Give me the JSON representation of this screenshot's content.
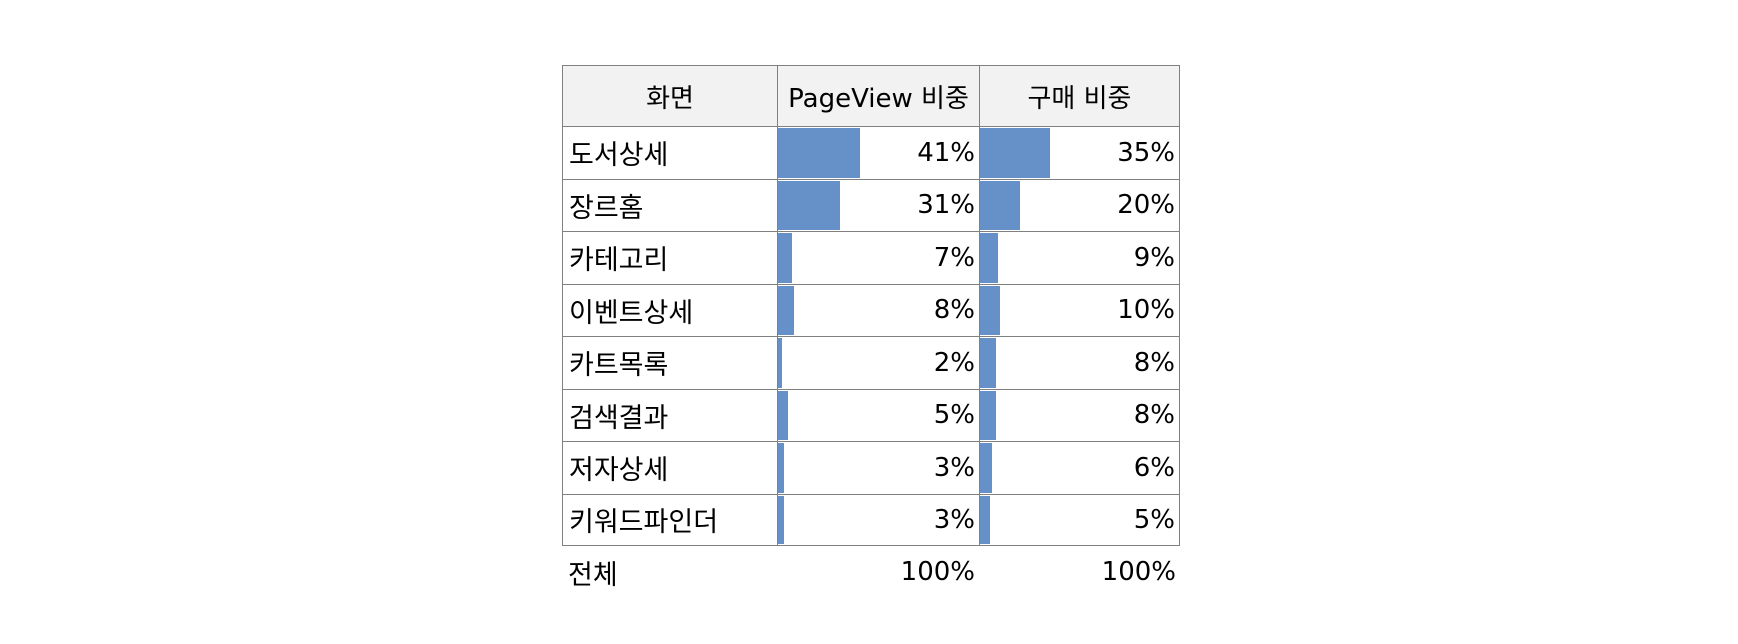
{
  "chart_data": {
    "type": "table",
    "columns": [
      "화면",
      "PageView 비중",
      "구매 비중"
    ],
    "rows": [
      {
        "name": "도서상세",
        "pageview": 41,
        "pageview_label": "41%",
        "purchase": 35,
        "purchase_label": "35%"
      },
      {
        "name": "장르홈",
        "pageview": 31,
        "pageview_label": "31%",
        "purchase": 20,
        "purchase_label": "20%"
      },
      {
        "name": "카테고리",
        "pageview": 7,
        "pageview_label": "7%",
        "purchase": 9,
        "purchase_label": "9%"
      },
      {
        "name": "이벤트상세",
        "pageview": 8,
        "pageview_label": "8%",
        "purchase": 10,
        "purchase_label": "10%"
      },
      {
        "name": "카트목록",
        "pageview": 2,
        "pageview_label": "2%",
        "purchase": 8,
        "purchase_label": "8%"
      },
      {
        "name": "검색결과",
        "pageview": 5,
        "pageview_label": "5%",
        "purchase": 8,
        "purchase_label": "8%"
      },
      {
        "name": "저자상세",
        "pageview": 3,
        "pageview_label": "3%",
        "purchase": 6,
        "purchase_label": "6%"
      },
      {
        "name": "키워드파인더",
        "pageview": 3,
        "pageview_label": "3%",
        "purchase": 5,
        "purchase_label": "5%"
      }
    ],
    "total": {
      "name": "전체",
      "pageview_label": "100%",
      "purchase_label": "100%"
    },
    "bar_max": 100,
    "bar_color": "#6690c8",
    "header_bg": "#f2f2f2"
  }
}
